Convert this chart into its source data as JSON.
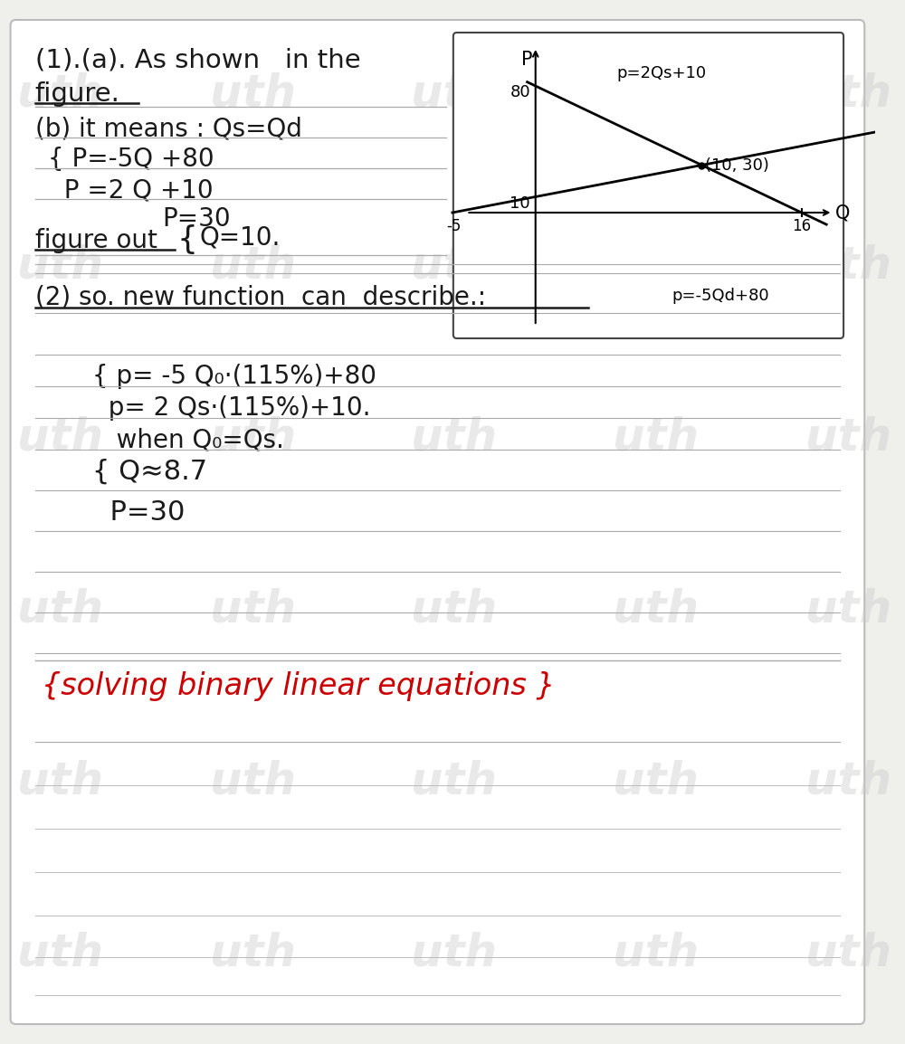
{
  "bg_color": "#efefeb",
  "card_bg": "#ffffff",
  "card_edge": "#bbbbbb",
  "text_color": "#1a1a1a",
  "red_color": "#cc0000",
  "watermark_color": "#c8c8c8",
  "title": "(1).(a). As shown   in the",
  "line1": "figure.",
  "line_b": "(b) it means : Qs=Qd",
  "eq1a": "{ P=-5Q +80",
  "eq1b": "  P =2 Q +10",
  "figureout": "figure out",
  "sol1": "P=30",
  "sol2": "Q=10.",
  "part2": "(2) so. new function  can  describe.:",
  "eq2a": "{ p= -5 Q₀·(115%)+80",
  "eq2b": "  p= 2 Qs·(115%)+10.",
  "when": "   when Q₀=Qs.",
  "sol3": "{ Q≈8.7",
  "sol4": "  P=30",
  "footer": "{solving binary linear equations }",
  "graph_eq_supply": "p=2Qs+10",
  "graph_eq_demand": "p=-5Qd+80",
  "graph_point": "(10, 30)"
}
